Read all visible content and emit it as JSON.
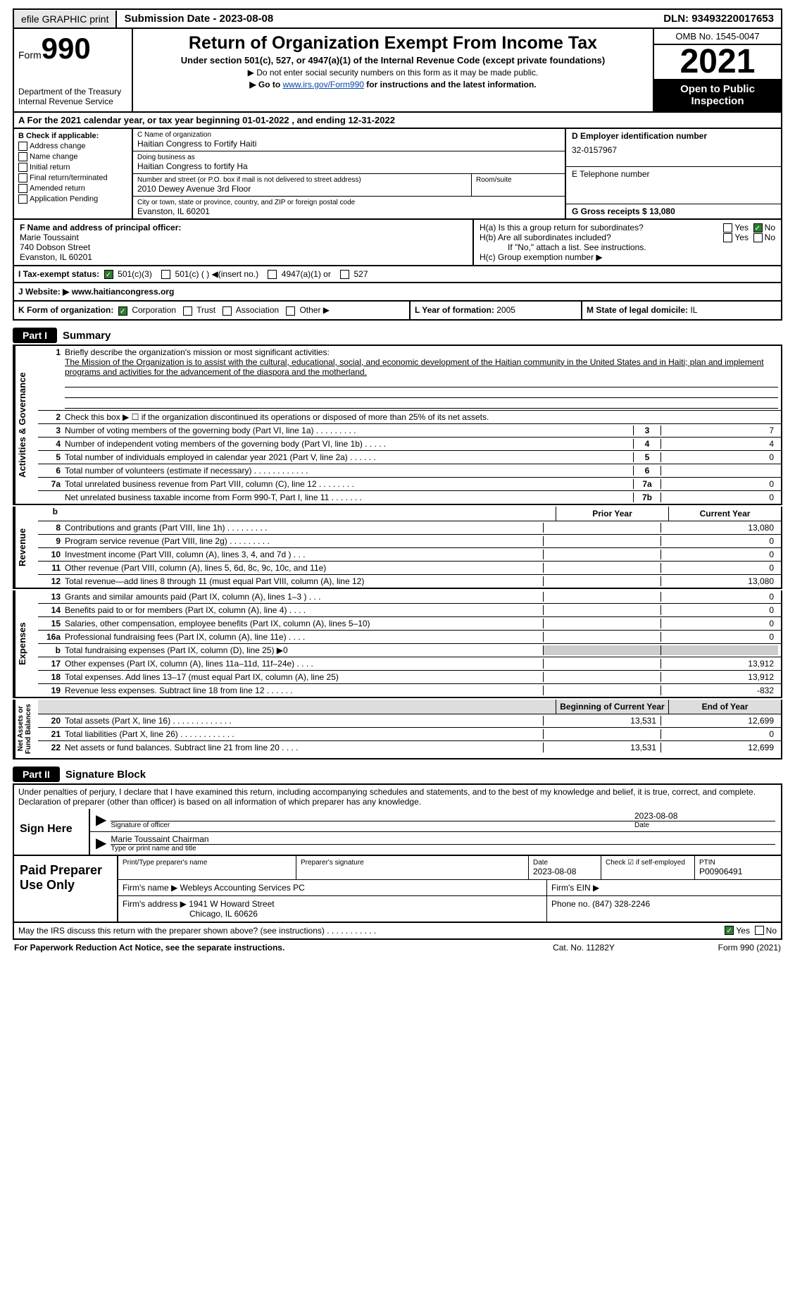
{
  "topbar": {
    "efile": "efile GRAPHIC print",
    "subdate_label": "Submission Date - ",
    "subdate": "2023-08-08",
    "dln_label": "DLN: ",
    "dln": "93493220017653"
  },
  "header": {
    "form_word": "Form",
    "form_num": "990",
    "dept": "Department of the Treasury\nInternal Revenue Service",
    "title": "Return of Organization Exempt From Income Tax",
    "subtitle": "Under section 501(c), 527, or 4947(a)(1) of the Internal Revenue Code (except private foundations)",
    "arrow1": "▶ Do not enter social security numbers on this form as it may be made public.",
    "arrow2_pre": "▶ Go to ",
    "arrow2_link": "www.irs.gov/Form990",
    "arrow2_post": " for instructions and the latest information.",
    "omb": "OMB No. 1545-0047",
    "year": "2021",
    "open": "Open to Public Inspection"
  },
  "taxyear": {
    "pre": "A For the 2021 calendar year, or tax year beginning ",
    "begin": "01-01-2022",
    "mid": " , and ending ",
    "end": "12-31-2022"
  },
  "B": {
    "label": "B Check if applicable:",
    "items": [
      "Address change",
      "Name change",
      "Initial return",
      "Final return/terminated",
      "Amended return",
      "Application Pending"
    ]
  },
  "C": {
    "name_label": "C Name of organization",
    "name": "Haitian Congress to Fortify Haiti",
    "dba_label": "Doing business as",
    "dba": "Haitian Congress to fortify Ha",
    "street_label": "Number and street (or P.O. box if mail is not delivered to street address)",
    "room_label": "Room/suite",
    "street": "2010 Dewey Avenue 3rd Floor",
    "city_label": "City or town, state or province, country, and ZIP or foreign postal code",
    "city": "Evanston, IL  60201"
  },
  "D": {
    "label": "D Employer identification number",
    "value": "32-0157967"
  },
  "E": {
    "label": "E Telephone number",
    "value": ""
  },
  "G": {
    "label": "G Gross receipts $ ",
    "value": "13,080"
  },
  "F": {
    "label": "F  Name and address of principal officer:",
    "name": "Marie Toussaint",
    "addr1": "740 Dobson Street",
    "addr2": "Evanston, IL  60201"
  },
  "H": {
    "a": "H(a)  Is this a group return for subordinates?",
    "b": "H(b)  Are all subordinates included?",
    "bno": "If \"No,\" attach a list. See instructions.",
    "c": "H(c)  Group exemption number ▶",
    "yes": "Yes",
    "no": "No"
  },
  "I": {
    "label": "I   Tax-exempt status:",
    "opts": [
      "501(c)(3)",
      "501(c) (  ) ◀(insert no.)",
      "4947(a)(1) or",
      "527"
    ]
  },
  "J": {
    "label": "J   Website: ▶",
    "value": "  www.haitiancongress.org"
  },
  "K": {
    "label": "K Form of organization:",
    "opts": [
      "Corporation",
      "Trust",
      "Association",
      "Other ▶"
    ]
  },
  "L": {
    "label": "L Year of formation: ",
    "value": "2005"
  },
  "M": {
    "label": "M State of legal domicile: ",
    "value": "IL"
  },
  "part1": {
    "label": "Part I",
    "title": "Summary"
  },
  "vtabs": {
    "ag": "Activities & Governance",
    "rev": "Revenue",
    "exp": "Expenses",
    "net": "Net Assets or\nFund Balances"
  },
  "s1": {
    "n": "1",
    "t": "Briefly describe the organization's mission or most significant activities:",
    "mission": "The Mission of the Organization is to assist with the cultural, educational, social, and economic development of the Haitian community in the United States and in Haiti; plan and implement programs and activities for the advancement of the diaspora and the motherland."
  },
  "s2": {
    "n": "2",
    "t": "Check this box ▶ ☐  if the organization discontinued its operations or disposed of more than 25% of its net assets."
  },
  "lines_ag": [
    {
      "n": "3",
      "t": "Number of voting members of the governing body (Part VI, line 1a)   .    .    .    .    .    .    .    .    .",
      "box": "3",
      "val": "7"
    },
    {
      "n": "4",
      "t": "Number of independent voting members of the governing body (Part VI, line 1b)   .    .    .    .    .",
      "box": "4",
      "val": "4"
    },
    {
      "n": "5",
      "t": "Total number of individuals employed in calendar year 2021 (Part V, line 2a)   .    .    .    .    .    .",
      "box": "5",
      "val": "0"
    },
    {
      "n": "6",
      "t": "Total number of volunteers (estimate if necessary)    .    .    .    .    .    .    .    .    .    .    .    .",
      "box": "6",
      "val": ""
    },
    {
      "n": "7a",
      "t": "Total unrelated business revenue from Part VIII, column (C), line 12   .    .    .    .    .    .    .    .",
      "box": "7a",
      "val": "0"
    },
    {
      "n": "",
      "t": "Net unrelated business taxable income from Form 990-T, Part I, line 11   .    .    .    .    .    .    .",
      "box": "7b",
      "val": "0"
    }
  ],
  "pycy": {
    "py": "Prior Year",
    "cy": "Current Year"
  },
  "lines_rev": [
    {
      "n": "8",
      "t": "Contributions and grants (Part VIII, line 1h)   .    .    .    .    .    .    .    .    .",
      "py": "",
      "cy": "13,080"
    },
    {
      "n": "9",
      "t": "Program service revenue (Part VIII, line 2g)    .    .    .    .    .    .    .    .    .",
      "py": "",
      "cy": "0"
    },
    {
      "n": "10",
      "t": "Investment income (Part VIII, column (A), lines 3, 4, and 7d )    .    .    .",
      "py": "",
      "cy": "0"
    },
    {
      "n": "11",
      "t": "Other revenue (Part VIII, column (A), lines 5, 6d, 8c, 9c, 10c, and 11e)",
      "py": "",
      "cy": "0"
    },
    {
      "n": "12",
      "t": "Total revenue—add lines 8 through 11 (must equal Part VIII, column (A), line 12)",
      "py": "",
      "cy": "13,080"
    }
  ],
  "lines_exp": [
    {
      "n": "13",
      "t": "Grants and similar amounts paid (Part IX, column (A), lines 1–3 )   .    .    .",
      "py": "",
      "cy": "0"
    },
    {
      "n": "14",
      "t": "Benefits paid to or for members (Part IX, column (A), line 4)   .    .    .    .",
      "py": "",
      "cy": "0"
    },
    {
      "n": "15",
      "t": "Salaries, other compensation, employee benefits (Part IX, column (A), lines 5–10)",
      "py": "",
      "cy": "0"
    },
    {
      "n": "16a",
      "t": "Professional fundraising fees (Part IX, column (A), line 11e)   .    .    .    .",
      "py": "",
      "cy": "0"
    },
    {
      "n": "b",
      "t": "Total fundraising expenses (Part IX, column (D), line 25) ▶0",
      "py": "grey",
      "cy": "grey"
    },
    {
      "n": "17",
      "t": "Other expenses (Part IX, column (A), lines 11a–11d, 11f–24e)   .    .    .    .",
      "py": "",
      "cy": "13,912"
    },
    {
      "n": "18",
      "t": "Total expenses. Add lines 13–17 (must equal Part IX, column (A), line 25)",
      "py": "",
      "cy": "13,912"
    },
    {
      "n": "19",
      "t": "Revenue less expenses. Subtract line 18 from line 12   .    .    .    .    .    .",
      "py": "",
      "cy": "-832"
    }
  ],
  "bcey": {
    "b": "Beginning of Current Year",
    "e": "End of Year"
  },
  "lines_net": [
    {
      "n": "20",
      "t": "Total assets (Part X, line 16)   .    .    .    .    .    .    .    .    .    .    .    .    .",
      "py": "13,531",
      "cy": "12,699"
    },
    {
      "n": "21",
      "t": "Total liabilities (Part X, line 26)   .    .    .    .    .    .    .    .    .    .    .    .",
      "py": "",
      "cy": "0"
    },
    {
      "n": "22",
      "t": "Net assets or fund balances. Subtract line 21 from line 20    .    .    .    .",
      "py": "13,531",
      "cy": "12,699"
    }
  ],
  "part2": {
    "label": "Part II",
    "title": "Signature Block"
  },
  "penalties": "Under penalties of perjury, I declare that I have examined this return, including accompanying schedules and statements, and to the best of my knowledge and belief, it is true, correct, and complete. Declaration of preparer (other than officer) is based on all information of which preparer has any knowledge.",
  "sign": {
    "here": "Sign Here",
    "sig_of": "Signature of officer",
    "date": "Date",
    "date_val": "2023-08-08",
    "name": "Marie Toussaint Chairman",
    "name_label": "Type or print name and title"
  },
  "prep": {
    "use": "Paid Preparer Use Only",
    "h": {
      "name": "Print/Type preparer's name",
      "sig": "Preparer's signature",
      "date": "Date",
      "dateval": "2023-08-08",
      "check": "Check ☑ if self-employed",
      "ptin": "PTIN",
      "ptinval": "P00906491"
    },
    "firm_label": "Firm's name    ▶",
    "firm": "Webleys Accounting Services PC",
    "ein": "Firm's EIN ▶",
    "addr_label": "Firm's address ▶",
    "addr1": "1941 W Howard Street",
    "addr2": "Chicago, IL  60626",
    "phone_label": "Phone no. ",
    "phone": "(847) 328-2246"
  },
  "discuss": {
    "t": "May the IRS discuss this return with the preparer shown above? (see instructions)    .    .    .    .    .    .    .    .    .    .    .",
    "yes": "Yes",
    "no": "No"
  },
  "foot": {
    "l": "For Paperwork Reduction Act Notice, see the separate instructions.",
    "m": "Cat. No. 11282Y",
    "r": "Form 990 (2021)"
  }
}
